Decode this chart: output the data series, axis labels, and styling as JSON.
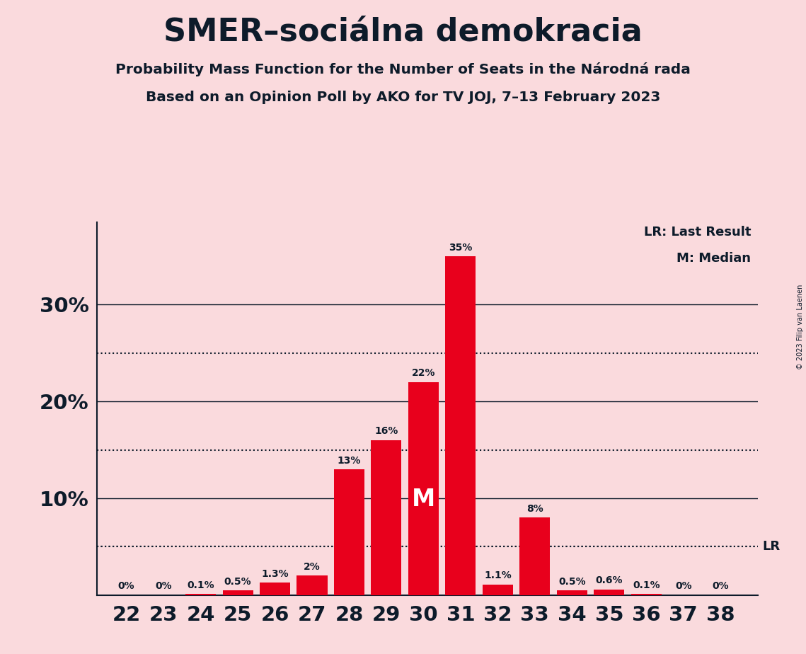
{
  "title": "SMER–sociálna demokracia",
  "subtitle1": "Probability Mass Function for the Number of Seats in the Národná rada",
  "subtitle2": "Based on an Opinion Poll by AKO for TV JOJ, 7–13 February 2023",
  "copyright": "© 2023 Filip van Laenen",
  "seats": [
    22,
    23,
    24,
    25,
    26,
    27,
    28,
    29,
    30,
    31,
    32,
    33,
    34,
    35,
    36,
    37,
    38
  ],
  "probabilities": [
    0.0,
    0.0,
    0.1,
    0.5,
    1.3,
    2.0,
    13.0,
    16.0,
    22.0,
    35.0,
    1.1,
    8.0,
    0.5,
    0.6,
    0.1,
    0.0,
    0.0
  ],
  "labels": [
    "0%",
    "0%",
    "0.1%",
    "0.5%",
    "1.3%",
    "2%",
    "13%",
    "16%",
    "22%",
    "35%",
    "1.1%",
    "8%",
    "0.5%",
    "0.6%",
    "0.1%",
    "0%",
    "0%"
  ],
  "bar_color": "#E8001C",
  "background_color": "#FADADD",
  "text_color": "#0D1B2A",
  "lr_value": 5.0,
  "median_seat": 30,
  "yticks": [
    10,
    20,
    30
  ],
  "dotted_lines": [
    5,
    15,
    25
  ],
  "legend_lr": "LR: Last Result",
  "legend_m": "M: Median",
  "figsize": [
    11.39,
    9.24
  ],
  "dpi": 100
}
